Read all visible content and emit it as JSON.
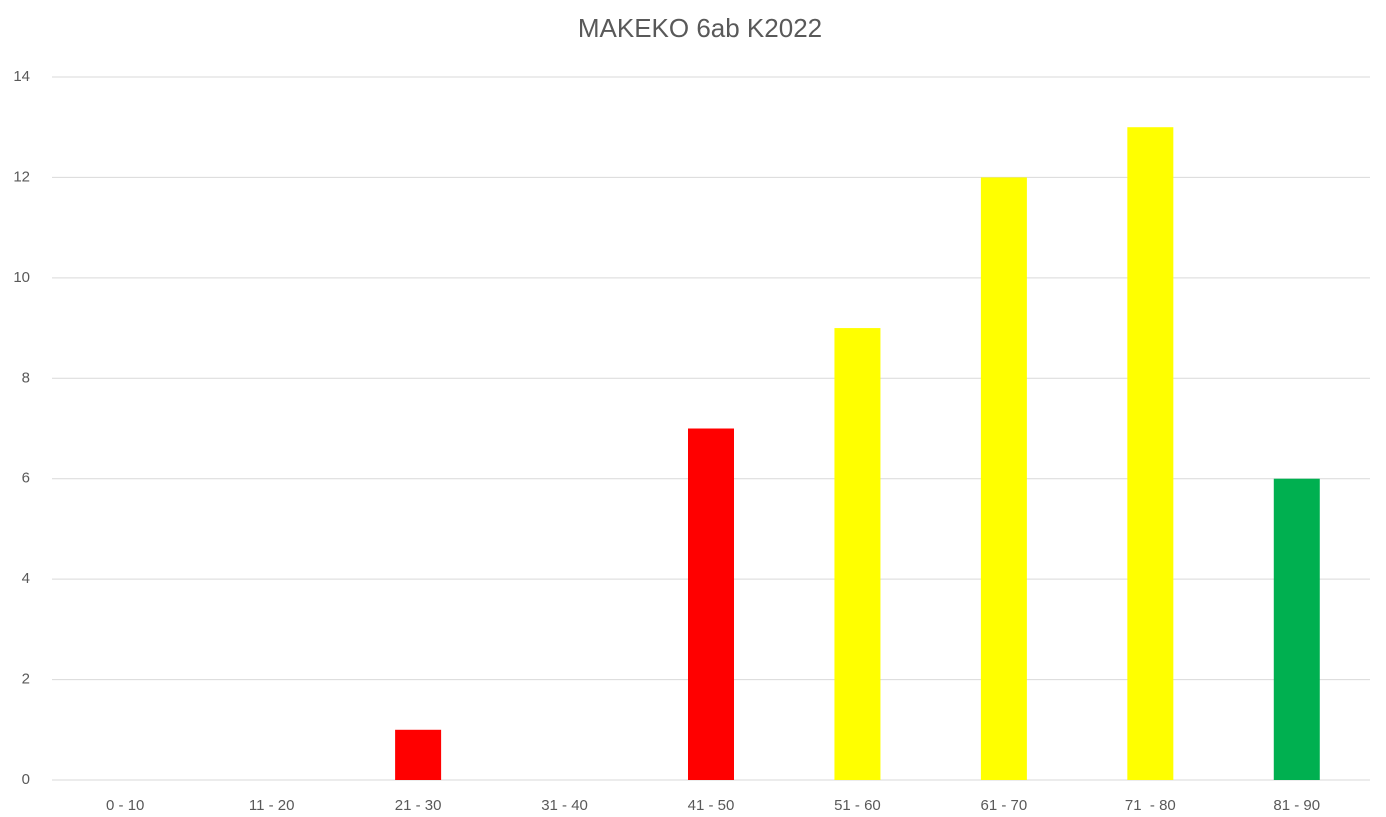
{
  "chart_data": {
    "type": "bar",
    "title": "MAKEKO 6ab K2022",
    "categories": [
      "0 - 10",
      "11 - 20",
      "21 - 30",
      "31 - 40",
      "41 - 50",
      "51 - 60",
      "61 - 70",
      "71  - 80",
      "81 - 90"
    ],
    "values": [
      0,
      0,
      1,
      0,
      7,
      9,
      12,
      13,
      6
    ],
    "colors": [
      "#ff0000",
      "#ff0000",
      "#ff0000",
      "#ff0000",
      "#ff0000",
      "#ffff00",
      "#ffff00",
      "#ffff00",
      "#00b050"
    ],
    "ylim": [
      0,
      14
    ],
    "yticks": [
      0,
      2,
      4,
      6,
      8,
      10,
      12,
      14
    ],
    "grid": true
  }
}
